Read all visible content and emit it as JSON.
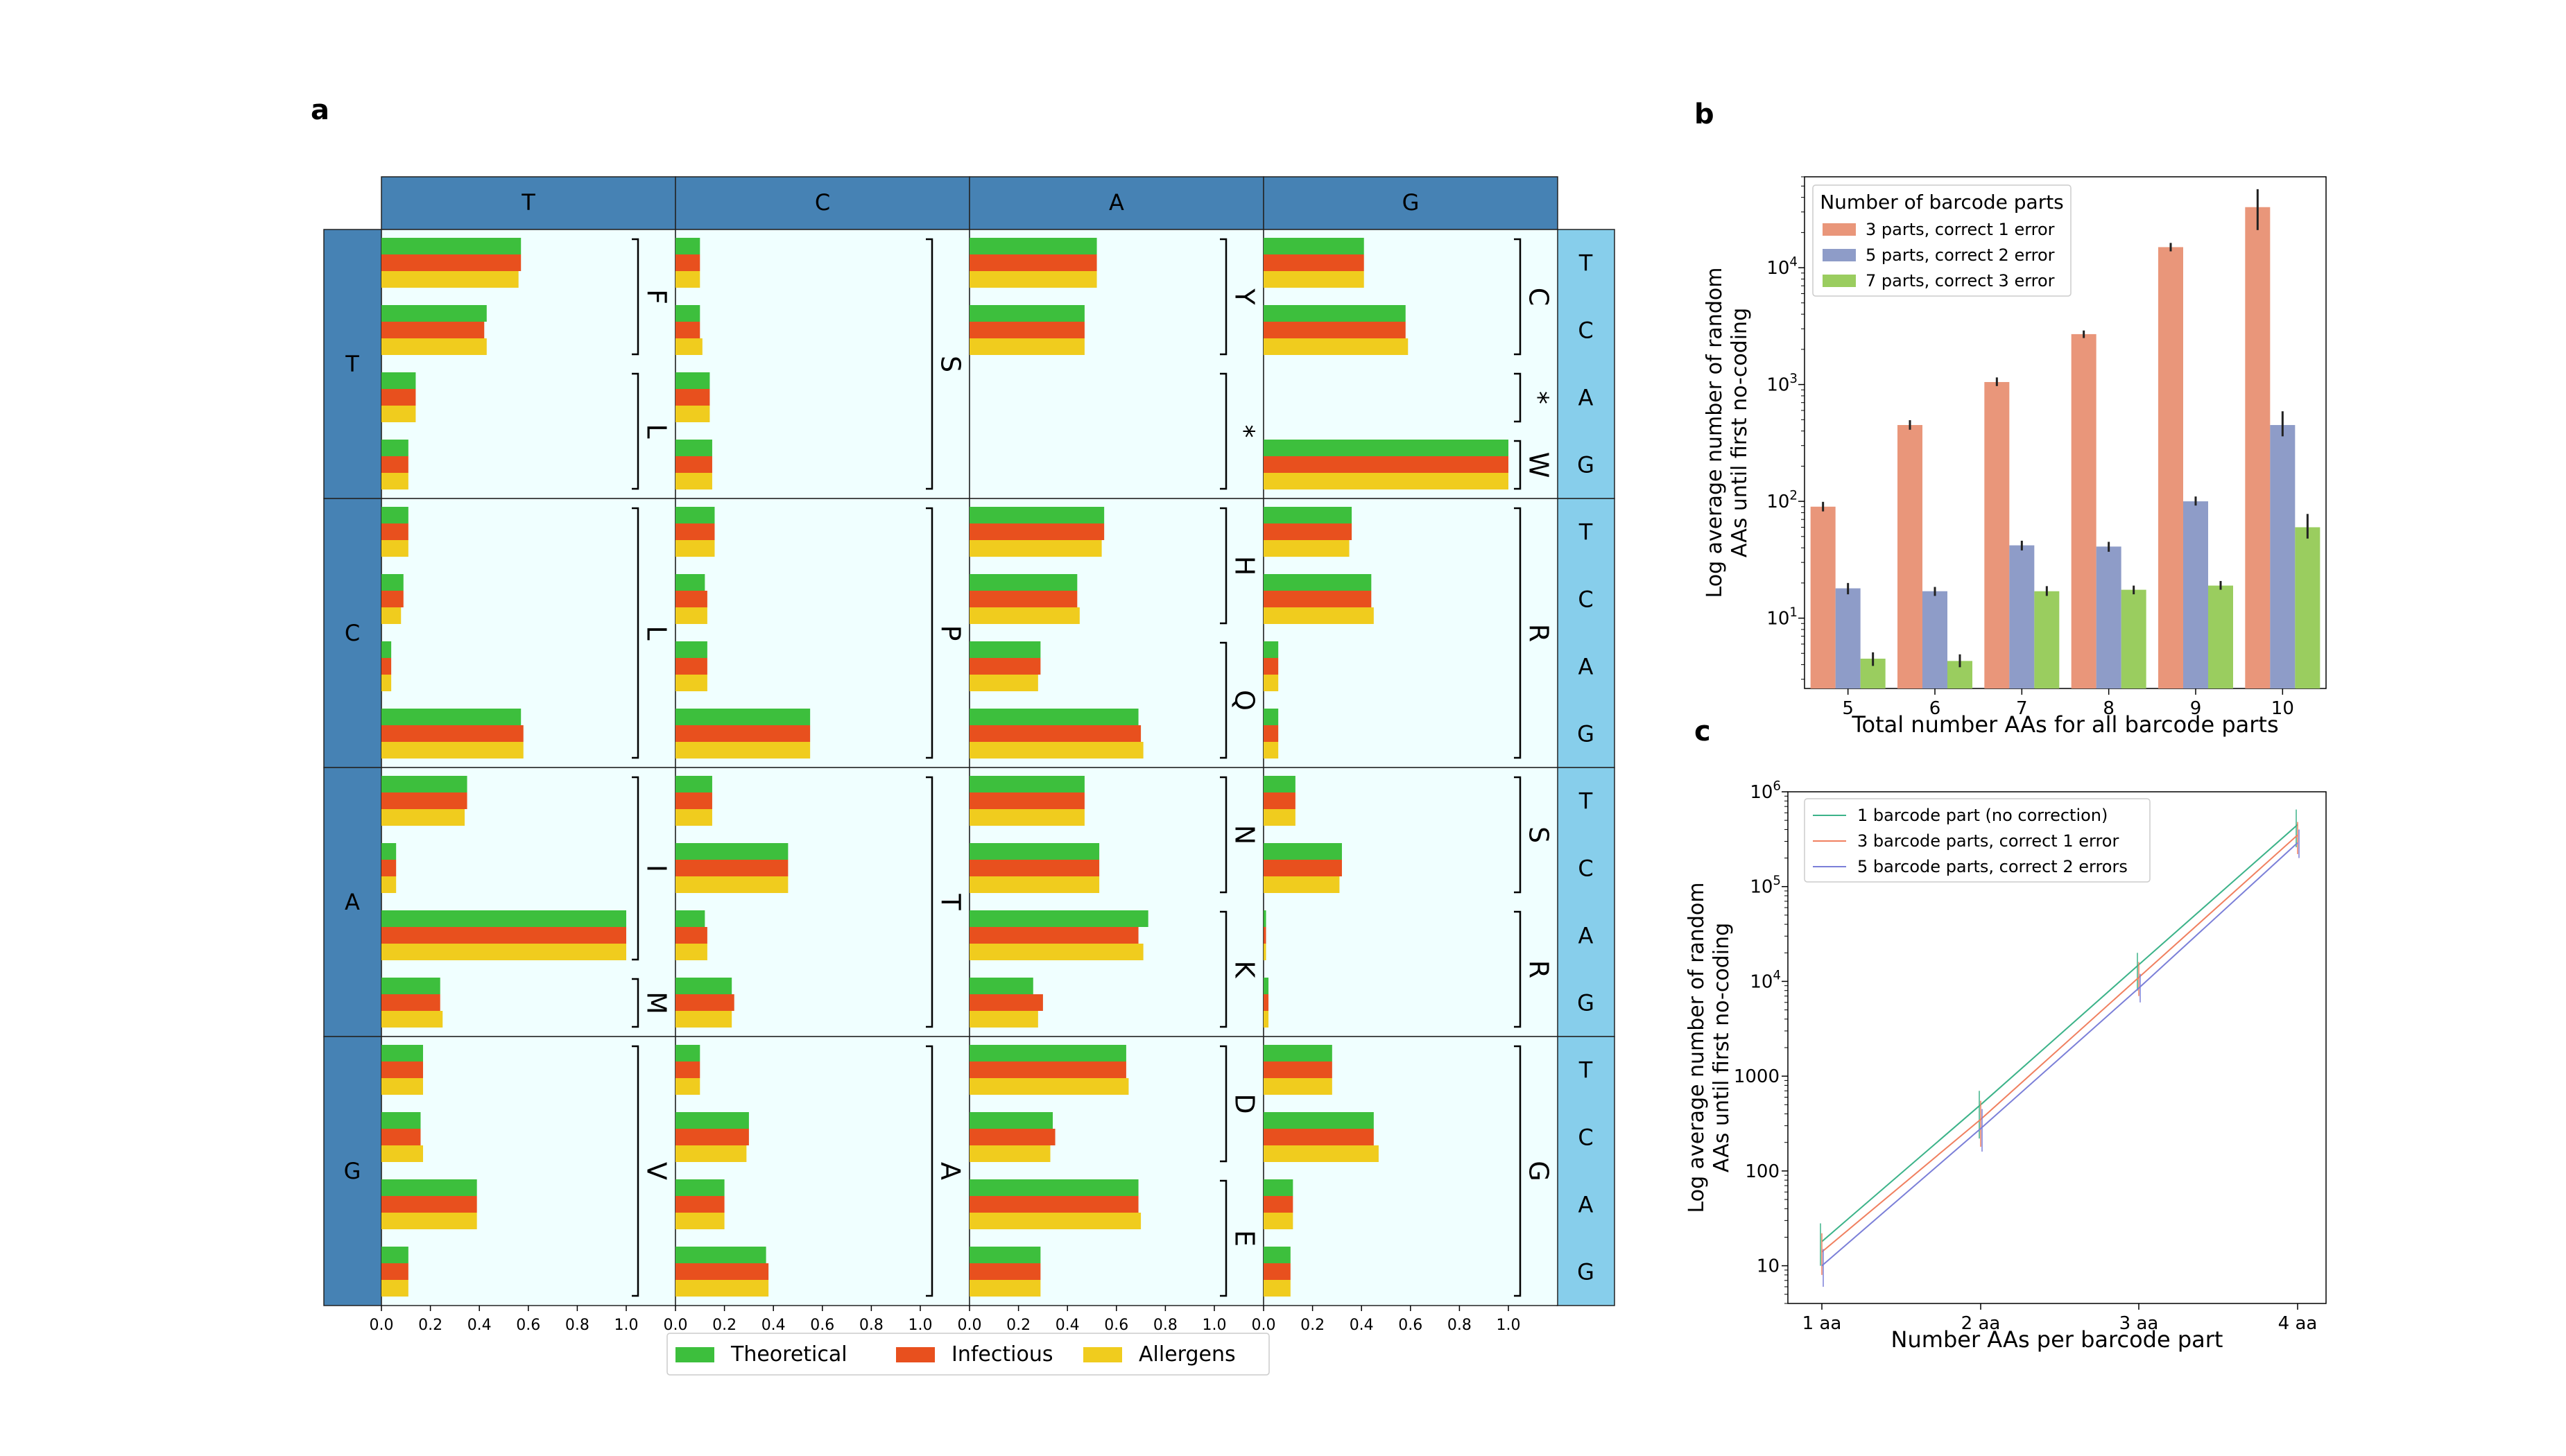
{
  "panel_labels": {
    "a": "a",
    "b": "b",
    "c": "c"
  },
  "panel_a": {
    "col_headers": [
      "T",
      "C",
      "A",
      "G"
    ],
    "row_headers": [
      "T",
      "C",
      "A",
      "G"
    ],
    "third_headers": [
      "T",
      "C",
      "A",
      "G"
    ],
    "xticks": [
      "0.0",
      "0.2",
      "0.4",
      "0.6",
      "0.8",
      "1.0"
    ],
    "legend": [
      "Theoretical",
      "Infectious",
      "Allergens"
    ],
    "colors": {
      "theoretical": "#3dbf3d",
      "infectious": "#e8501e",
      "allergens": "#f0cc1e",
      "header": "#4682b4",
      "side": "#87ceeb",
      "cellbg": "#f0ffff"
    },
    "brackets": [
      {
        "col": 0,
        "start": 0,
        "end": 1,
        "label": "F"
      },
      {
        "col": 0,
        "start": 2,
        "end": 3,
        "label": "L"
      },
      {
        "col": 1,
        "start": 0,
        "end": 3,
        "label": "S"
      },
      {
        "col": 2,
        "start": 0,
        "end": 1,
        "label": "Y"
      },
      {
        "col": 2,
        "start": 2,
        "end": 3,
        "label": "*"
      },
      {
        "col": 3,
        "start": 0,
        "end": 1,
        "label": "C"
      },
      {
        "col": 3,
        "start": 2,
        "end": 2,
        "label": "*"
      },
      {
        "col": 3,
        "start": 3,
        "end": 3,
        "label": "W"
      },
      {
        "col": 0,
        "start": 4,
        "end": 7,
        "label": "L"
      },
      {
        "col": 1,
        "start": 4,
        "end": 7,
        "label": "P"
      },
      {
        "col": 2,
        "start": 4,
        "end": 5,
        "label": "H"
      },
      {
        "col": 2,
        "start": 6,
        "end": 7,
        "label": "Q"
      },
      {
        "col": 3,
        "start": 4,
        "end": 7,
        "label": "R"
      },
      {
        "col": 0,
        "start": 8,
        "end": 10,
        "label": "I"
      },
      {
        "col": 0,
        "start": 11,
        "end": 11,
        "label": "M"
      },
      {
        "col": 1,
        "start": 8,
        "end": 11,
        "label": "T"
      },
      {
        "col": 2,
        "start": 8,
        "end": 9,
        "label": "N"
      },
      {
        "col": 2,
        "start": 10,
        "end": 11,
        "label": "K"
      },
      {
        "col": 3,
        "start": 8,
        "end": 9,
        "label": "S"
      },
      {
        "col": 3,
        "start": 10,
        "end": 11,
        "label": "R"
      },
      {
        "col": 0,
        "start": 12,
        "end": 15,
        "label": "V"
      },
      {
        "col": 1,
        "start": 12,
        "end": 15,
        "label": "A"
      },
      {
        "col": 2,
        "start": 12,
        "end": 13,
        "label": "D"
      },
      {
        "col": 2,
        "start": 14,
        "end": 15,
        "label": "E"
      },
      {
        "col": 3,
        "start": 12,
        "end": 15,
        "label": "G"
      }
    ]
  },
  "chart_data": [
    {
      "type": "bar",
      "orientation": "horizontal",
      "xlim": [
        0,
        1.0
      ],
      "series_names": [
        "Theoretical",
        "Infectious",
        "Allergens"
      ],
      "codon_rows": 16,
      "cells": [
        [
          [
            0.57,
            0.57,
            0.56
          ],
          [
            0.43,
            0.42,
            0.43
          ],
          [
            0.14,
            0.14,
            0.14
          ],
          [
            0.11,
            0.11,
            0.11
          ],
          [
            0.11,
            0.11,
            0.11
          ],
          [
            0.09,
            0.09,
            0.08
          ],
          [
            0.04,
            0.04,
            0.04
          ],
          [
            0.57,
            0.58,
            0.58
          ],
          [
            0.35,
            0.35,
            0.34
          ],
          [
            0.06,
            0.06,
            0.06
          ],
          [
            1.0,
            1.0,
            1.0
          ],
          [
            0.24,
            0.24,
            0.25
          ],
          [
            0.17,
            0.17,
            0.17
          ],
          [
            0.16,
            0.16,
            0.17
          ],
          [
            0.39,
            0.39,
            0.39
          ],
          [
            0.11,
            0.11,
            0.11
          ]
        ],
        [
          [
            0.1,
            0.1,
            0.1
          ],
          [
            0.1,
            0.1,
            0.11
          ],
          [
            0.14,
            0.14,
            0.14
          ],
          [
            0.15,
            0.15,
            0.15
          ],
          [
            0.16,
            0.16,
            0.16
          ],
          [
            0.12,
            0.13,
            0.13
          ],
          [
            0.13,
            0.13,
            0.13
          ],
          [
            0.55,
            0.55,
            0.55
          ],
          [
            0.15,
            0.15,
            0.15
          ],
          [
            0.46,
            0.46,
            0.46
          ],
          [
            0.12,
            0.13,
            0.13
          ],
          [
            0.23,
            0.24,
            0.23
          ],
          [
            0.1,
            0.1,
            0.1
          ],
          [
            0.3,
            0.3,
            0.29
          ],
          [
            0.2,
            0.2,
            0.2
          ],
          [
            0.37,
            0.38,
            0.38
          ]
        ],
        [
          [
            0.52,
            0.52,
            0.52
          ],
          [
            0.47,
            0.47,
            0.47
          ],
          [
            0,
            0,
            0
          ],
          [
            0,
            0,
            0
          ],
          [
            0.55,
            0.55,
            0.54
          ],
          [
            0.44,
            0.44,
            0.45
          ],
          [
            0.29,
            0.29,
            0.28
          ],
          [
            0.69,
            0.7,
            0.71
          ],
          [
            0.47,
            0.47,
            0.47
          ],
          [
            0.53,
            0.53,
            0.53
          ],
          [
            0.73,
            0.69,
            0.71
          ],
          [
            0.26,
            0.3,
            0.28
          ],
          [
            0.64,
            0.64,
            0.65
          ],
          [
            0.34,
            0.35,
            0.33
          ],
          [
            0.69,
            0.69,
            0.7
          ],
          [
            0.29,
            0.29,
            0.29
          ]
        ],
        [
          [
            0.41,
            0.41,
            0.41
          ],
          [
            0.58,
            0.58,
            0.59
          ],
          [
            0,
            0,
            0
          ],
          [
            1.0,
            1.0,
            1.0
          ],
          [
            0.36,
            0.36,
            0.35
          ],
          [
            0.44,
            0.44,
            0.45
          ],
          [
            0.06,
            0.06,
            0.06
          ],
          [
            0.06,
            0.06,
            0.06
          ],
          [
            0.13,
            0.13,
            0.13
          ],
          [
            0.32,
            0.32,
            0.31
          ],
          [
            0.01,
            0.01,
            0.01
          ],
          [
            0.02,
            0.02,
            0.02
          ],
          [
            0.28,
            0.28,
            0.28
          ],
          [
            0.45,
            0.45,
            0.47
          ],
          [
            0.12,
            0.12,
            0.12
          ],
          [
            0.11,
            0.11,
            0.11
          ]
        ]
      ]
    },
    {
      "type": "bar",
      "title": "",
      "xlabel": "Total number AAs for all barcode parts",
      "ylabel": "Log average number of random AAs until first no-coding",
      "ylabel_lines": [
        "Log average number of random",
        "AAs until first no-coding"
      ],
      "yscale": "log",
      "ylim": [
        2.5,
        60000
      ],
      "yticks": [
        {
          "v": 10,
          "b": "10",
          "e": "1"
        },
        {
          "v": 100,
          "b": "10",
          "e": "2"
        },
        {
          "v": 1000,
          "b": "10",
          "e": "3"
        },
        {
          "v": 10000,
          "b": "10",
          "e": "4"
        }
      ],
      "categories": [
        "5",
        "6",
        "7",
        "8",
        "9",
        "10"
      ],
      "legend_title": "Number of barcode parts",
      "legend_position": "top-left",
      "series": [
        {
          "name": "3 parts, correct 1 error",
          "color": "#e9967a",
          "values": [
            90,
            450,
            1050,
            2700,
            15000,
            33000
          ],
          "err_low": [
            82,
            410,
            970,
            2500,
            13800,
            21000
          ],
          "err_high": [
            99,
            495,
            1150,
            2900,
            16300,
            47000
          ]
        },
        {
          "name": "5 parts, correct 2 error",
          "color": "#8e9cc8",
          "values": [
            18,
            17,
            42,
            41,
            100,
            450
          ],
          "err_low": [
            16,
            15.5,
            38,
            37,
            92,
            360
          ],
          "err_high": [
            20,
            18.5,
            46,
            45,
            110,
            590
          ]
        },
        {
          "name": "7 parts, correct 3 error",
          "color": "#9acd5f",
          "values": [
            4.5,
            4.3,
            17,
            17.5,
            19,
            60
          ],
          "err_low": [
            3.9,
            3.8,
            15.5,
            16,
            17.5,
            48
          ],
          "err_high": [
            5.1,
            4.9,
            18.8,
            19,
            20.8,
            78
          ]
        }
      ]
    },
    {
      "type": "line",
      "xlabel": "Number AAs per barcode part",
      "ylabel": "Log average number of random AAs until first no-coding",
      "ylabel_lines": [
        "Log average number of random",
        "AAs until first no-coding"
      ],
      "yscale": "log",
      "ylim": [
        4,
        1000000
      ],
      "yticks": [
        {
          "v": 10,
          "t": "10"
        },
        {
          "v": 100,
          "t": "100"
        },
        {
          "v": 1000,
          "t": "1000"
        },
        {
          "v": 10000,
          "b": "10",
          "e": "4"
        },
        {
          "v": 100000,
          "b": "10",
          "e": "5"
        },
        {
          "v": 1000000,
          "b": "10",
          "e": "6"
        }
      ],
      "categories": [
        "1 aa",
        "2 aa",
        "3 aa",
        "4 aa"
      ],
      "legend_position": "top-left",
      "series": [
        {
          "name": "1 barcode part (no correction)",
          "color": "#3cb389",
          "values": [
            18,
            500,
            15000,
            450000
          ],
          "err_low": [
            10,
            220,
            8000,
            260000
          ],
          "err_high": [
            28,
            700,
            20000,
            650000
          ]
        },
        {
          "name": "3 barcode parts, correct 1 error",
          "color": "#f08060",
          "values": [
            14,
            350,
            11000,
            350000
          ],
          "err_low": [
            8,
            180,
            7000,
            220000
          ],
          "err_high": [
            22,
            550,
            16000,
            480000
          ]
        },
        {
          "name": "5 barcode parts, correct 2 errors",
          "color": "#7b7fd8",
          "values": [
            10,
            280,
            8500,
            290000
          ],
          "err_low": [
            6,
            160,
            6000,
            200000
          ],
          "err_high": [
            15,
            450,
            12000,
            400000
          ]
        }
      ]
    }
  ]
}
